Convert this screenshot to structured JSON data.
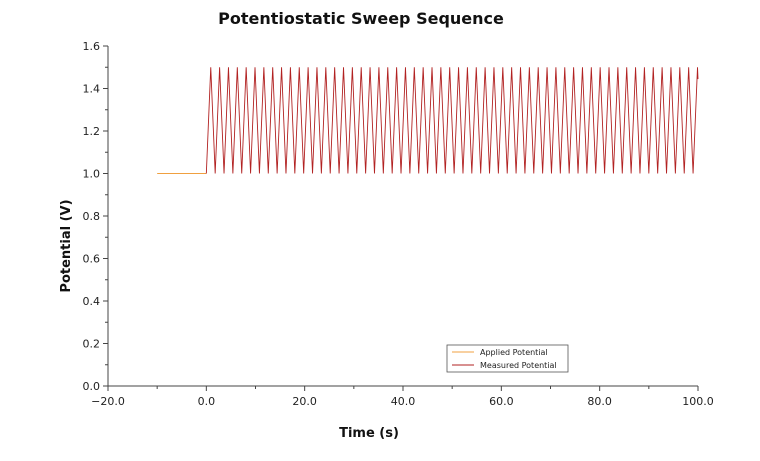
{
  "chart_data": {
    "type": "line",
    "title": "Potentiostatic Sweep Sequence",
    "xlabel": "Time (s)",
    "ylabel": "Potential (V)",
    "xlim": [
      -20,
      100
    ],
    "ylim": [
      0,
      1.6
    ],
    "x_ticks": [
      -20,
      0,
      20,
      40,
      60,
      80,
      100
    ],
    "y_ticks": [
      0,
      0.2,
      0.4,
      0.6,
      0.8,
      1.0,
      1.2,
      1.4,
      1.6
    ],
    "x_tick_labels": [
      "−20.0",
      "0.0",
      "20.0",
      "40.0",
      "60.0",
      "80.0",
      "100.0"
    ],
    "y_tick_labels": [
      "0.0",
      "0.2",
      "0.4",
      "0.6",
      "0.8",
      "1.0",
      "1.2",
      "1.4",
      "1.6"
    ],
    "grid": false,
    "legend_position": "bottom-right",
    "series": [
      {
        "name": "Applied Potential",
        "color": "#f0a040",
        "x": [
          -10,
          0
        ],
        "y": [
          1.0,
          1.0
        ]
      },
      {
        "name": "Measured Potential",
        "color": "#b22222",
        "x_start": 0,
        "x_end": 100,
        "period_s": 1.8,
        "y_min": 1.0,
        "y_max": 1.5
      }
    ]
  }
}
